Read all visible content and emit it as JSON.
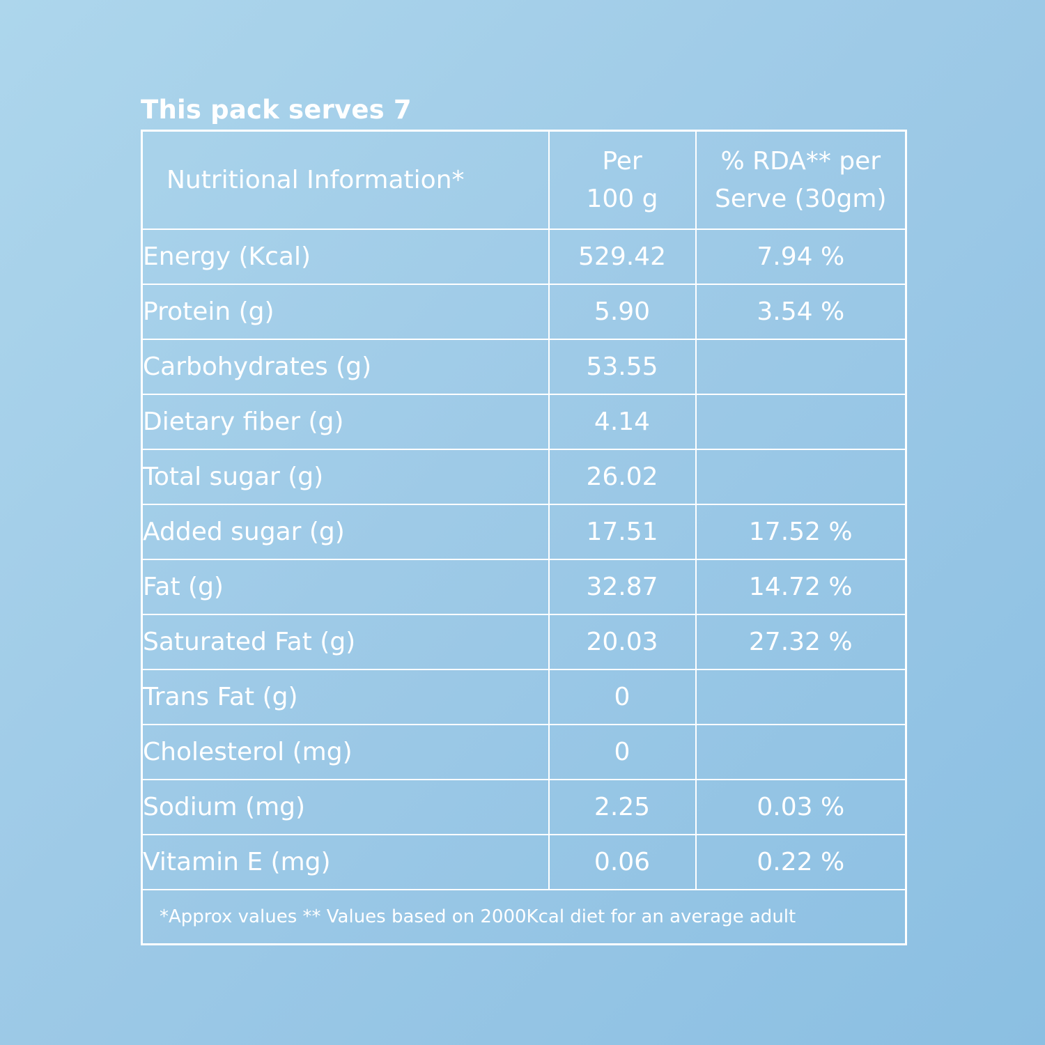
{
  "title": "This pack serves 7",
  "table": {
    "headers": [
      "Nutritional Information*",
      "Per\n100 g",
      "% RDA** per\nServe (30gm)"
    ],
    "header_lines": {
      "col1": "Nutritional Information*",
      "col2_line1": "Per",
      "col2_line2": "100 g",
      "col3_line1": "% RDA** per",
      "col3_line2": "Serve (30gm)"
    },
    "rows": [
      {
        "label": "Energy (Kcal)",
        "per100": "529.42",
        "rda": "7.94 %"
      },
      {
        "label": "Protein (g)",
        "per100": "5.90",
        "rda": "3.54 %"
      },
      {
        "label": "Carbohydrates (g)",
        "per100": "53.55",
        "rda": ""
      },
      {
        "label": "Dietary fiber (g)",
        "per100": "4.14",
        "rda": ""
      },
      {
        "label": "Total sugar (g)",
        "per100": "26.02",
        "rda": ""
      },
      {
        "label": "Added sugar (g)",
        "per100": "17.51",
        "rda": "17.52 %"
      },
      {
        "label": "Fat (g)",
        "per100": "32.87",
        "rda": "14.72 %"
      },
      {
        "label": "Saturated Fat (g)",
        "per100": "20.03",
        "rda": "27.32 %"
      },
      {
        "label": "Trans Fat (g)",
        "per100": "0",
        "rda": ""
      },
      {
        "label": "Cholesterol (mg)",
        "per100": "0",
        "rda": ""
      },
      {
        "label": "Sodium (mg)",
        "per100": "2.25",
        "rda": "0.03 %"
      },
      {
        "label": "Vitamin E (mg)",
        "per100": "0.06",
        "rda": "0.22 %"
      }
    ],
    "footnote": "*Approx values ** Values based on 2000Kcal diet for an average adult"
  },
  "colors": {
    "background_light": "#add6ec",
    "background_dark": "#8bbfe2",
    "text": "#ffffff",
    "border": "#ffffff"
  }
}
